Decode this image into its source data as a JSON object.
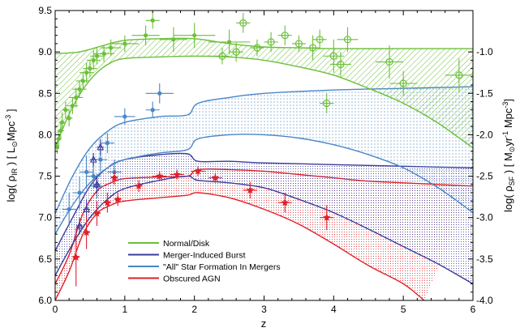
{
  "chart_data": {
    "type": "line",
    "xlabel": "z",
    "ylabel": "log( ρ_IR ) [ L_⊙Mpc^-3 ]",
    "ylabel_right": "log( ρ_SF ) [ M_⊙yr^-1 Mpc^-3 ]",
    "xlim": [
      0,
      6
    ],
    "ylim": [
      6.0,
      9.5
    ],
    "xticks": [
      "0",
      "1",
      "2",
      "3",
      "4",
      "5",
      "6"
    ],
    "yticks": [
      "6.0",
      "6.5",
      "7.0",
      "7.5",
      "8.0",
      "8.5",
      "9.0",
      "9.5"
    ],
    "yticks_right": [
      "-1.0",
      "-1.5",
      "-2.0",
      "-2.5",
      "-3.0",
      "-3.5",
      "-4.0"
    ],
    "yticks_right_values": [
      9.0,
      8.5,
      8.0,
      7.5,
      7.0,
      6.5,
      6.0
    ],
    "colors": {
      "normal": "#6cbf3a",
      "merger_burst": "#3b3b9a",
      "all_mergers": "#4a86c5",
      "agn": "#e0202a"
    },
    "legend": [
      {
        "label": "Normal/Disk",
        "color": "#6cbf3a"
      },
      {
        "label": "Merger-Induced Burst",
        "color": "#3b3b9a"
      },
      {
        "label": "\"All\" Star Formation In Mergers",
        "color": "#4a86c5"
      },
      {
        "label": "Obscured AGN",
        "color": "#e0202a"
      }
    ],
    "legend_position": "bottom-center",
    "series": [
      {
        "name": "Normal/Disk",
        "color": "#6cbf3a",
        "upper": [
          [
            0,
            8.98
          ],
          [
            0.35,
            9.0
          ],
          [
            0.7,
            9.08
          ],
          [
            1.0,
            9.14
          ],
          [
            1.5,
            9.16
          ],
          [
            2.0,
            9.16
          ],
          [
            2.5,
            9.1
          ],
          [
            3.0,
            9.06
          ],
          [
            3.5,
            9.05
          ],
          [
            4.0,
            9.04
          ],
          [
            5.0,
            9.04
          ],
          [
            6.0,
            9.04
          ]
        ],
        "lower": [
          [
            0,
            7.85
          ],
          [
            0.2,
            8.25
          ],
          [
            0.4,
            8.55
          ],
          [
            0.6,
            8.75
          ],
          [
            0.8,
            8.87
          ],
          [
            1.0,
            8.92
          ],
          [
            1.5,
            8.94
          ],
          [
            2.0,
            8.95
          ],
          [
            2.5,
            8.94
          ],
          [
            3.0,
            8.9
          ],
          [
            3.5,
            8.82
          ],
          [
            4.0,
            8.72
          ],
          [
            4.5,
            8.56
          ],
          [
            5.0,
            8.38
          ],
          [
            5.5,
            8.14
          ],
          [
            6.0,
            7.84
          ]
        ]
      },
      {
        "name": "All Star Formation In Mergers",
        "color": "#4a86c5",
        "upper": [
          [
            0,
            7.05
          ],
          [
            0.25,
            7.5
          ],
          [
            0.5,
            7.84
          ],
          [
            0.75,
            8.04
          ],
          [
            1.0,
            8.15
          ],
          [
            1.5,
            8.22
          ],
          [
            1.9,
            8.24
          ],
          [
            2.05,
            8.38
          ],
          [
            2.5,
            8.45
          ],
          [
            3.0,
            8.5
          ],
          [
            4.0,
            8.54
          ],
          [
            5.0,
            8.56
          ],
          [
            6.0,
            8.58
          ]
        ],
        "lower": [
          [
            0,
            6.8
          ],
          [
            0.25,
            7.15
          ],
          [
            0.5,
            7.42
          ],
          [
            0.75,
            7.6
          ],
          [
            1.0,
            7.7
          ],
          [
            1.5,
            7.78
          ],
          [
            1.9,
            7.82
          ],
          [
            2.05,
            7.95
          ],
          [
            2.5,
            8.0
          ],
          [
            3.0,
            8.0
          ],
          [
            3.5,
            7.96
          ],
          [
            4.0,
            7.88
          ],
          [
            4.5,
            7.76
          ],
          [
            5.0,
            7.6
          ],
          [
            5.5,
            7.36
          ],
          [
            6.0,
            7.06
          ]
        ]
      },
      {
        "name": "Merger-Induced Burst",
        "color": "#3b3b9a",
        "upper": [
          [
            0,
            6.6
          ],
          [
            0.25,
            7.0
          ],
          [
            0.5,
            7.38
          ],
          [
            0.75,
            7.6
          ],
          [
            1.0,
            7.7
          ],
          [
            1.5,
            7.76
          ],
          [
            1.9,
            7.77
          ],
          [
            2.05,
            7.68
          ],
          [
            2.5,
            7.68
          ],
          [
            3.0,
            7.66
          ],
          [
            4.0,
            7.64
          ],
          [
            5.0,
            7.62
          ],
          [
            6.0,
            7.6
          ]
        ],
        "lower": [
          [
            0,
            6.3
          ],
          [
            0.25,
            6.68
          ],
          [
            0.5,
            7.0
          ],
          [
            0.75,
            7.22
          ],
          [
            1.0,
            7.35
          ],
          [
            1.5,
            7.45
          ],
          [
            1.9,
            7.5
          ],
          [
            2.05,
            7.45
          ],
          [
            2.5,
            7.42
          ],
          [
            3.0,
            7.36
          ],
          [
            3.5,
            7.22
          ],
          [
            4.0,
            7.06
          ],
          [
            4.5,
            6.86
          ],
          [
            5.0,
            6.65
          ],
          [
            5.5,
            6.44
          ],
          [
            6.0,
            6.2
          ]
        ]
      },
      {
        "name": "Obscured AGN",
        "color": "#e0202a",
        "upper": [
          [
            0,
            6.2
          ],
          [
            0.2,
            6.55
          ],
          [
            0.4,
            7.05
          ],
          [
            0.6,
            7.32
          ],
          [
            0.8,
            7.42
          ],
          [
            1.0,
            7.47
          ],
          [
            1.5,
            7.49
          ],
          [
            1.9,
            7.5
          ],
          [
            2.05,
            7.58
          ],
          [
            2.5,
            7.58
          ],
          [
            3.0,
            7.56
          ],
          [
            3.5,
            7.52
          ],
          [
            4.0,
            7.48
          ],
          [
            4.5,
            7.44
          ],
          [
            5.0,
            7.42
          ],
          [
            6.0,
            7.38
          ]
        ],
        "lower": [
          [
            0,
            6.0
          ],
          [
            0.2,
            6.35
          ],
          [
            0.4,
            6.8
          ],
          [
            0.6,
            7.05
          ],
          [
            0.8,
            7.15
          ],
          [
            1.0,
            7.2
          ],
          [
            1.5,
            7.24
          ],
          [
            1.9,
            7.27
          ],
          [
            2.05,
            7.3
          ],
          [
            2.5,
            7.24
          ],
          [
            3.0,
            7.1
          ],
          [
            3.5,
            6.92
          ],
          [
            4.0,
            6.68
          ],
          [
            4.5,
            6.42
          ],
          [
            5.0,
            6.2
          ],
          [
            5.3,
            6.0
          ]
        ]
      }
    ],
    "points": [
      {
        "set": "normal-filled",
        "color": "#6cbf3a",
        "marker": "circle-filled",
        "data": [
          [
            0.03,
            7.85,
            0,
            0.08
          ],
          [
            0.05,
            7.95,
            0.04,
            0.1
          ],
          [
            0.08,
            8.05,
            0.05,
            0.1
          ],
          [
            0.1,
            8.15,
            0.05,
            0.12
          ],
          [
            0.15,
            8.3,
            0.05,
            0.1
          ],
          [
            0.2,
            8.2,
            0.05,
            0.1
          ],
          [
            0.25,
            8.35,
            0.08,
            0.1
          ],
          [
            0.3,
            8.45,
            0.1,
            0.12
          ],
          [
            0.35,
            8.55,
            0.1,
            0.1
          ],
          [
            0.4,
            8.65,
            0.1,
            0.1
          ],
          [
            0.45,
            8.75,
            0.1,
            0.12
          ],
          [
            0.5,
            8.8,
            0.1,
            0.1
          ],
          [
            0.55,
            8.9,
            0.1,
            0.12
          ],
          [
            0.6,
            8.95,
            0.1,
            0.1
          ],
          [
            0.7,
            8.98,
            0.15,
            0.1
          ],
          [
            0.8,
            9.05,
            0.15,
            0.1
          ],
          [
            1.0,
            9.1,
            0.2,
            0.1
          ],
          [
            1.3,
            9.2,
            0.2,
            0.12
          ],
          [
            1.7,
            9.15,
            0.2,
            0.15
          ],
          [
            2.0,
            9.2,
            0.3,
            0.15
          ],
          [
            2.5,
            9.12,
            0.3,
            0.15
          ],
          [
            1.4,
            9.38,
            0.1,
            0.1
          ]
        ]
      },
      {
        "set": "normal-open",
        "color": "#6cbf3a",
        "marker": "circle-open",
        "data": [
          [
            2.4,
            8.95,
            0.1,
            0.1
          ],
          [
            2.6,
            9.0,
            0.1,
            0.12
          ],
          [
            2.9,
            9.05,
            0.1,
            0.1
          ],
          [
            3.1,
            9.12,
            0.1,
            0.12
          ],
          [
            3.3,
            9.2,
            0.1,
            0.12
          ],
          [
            3.5,
            9.1,
            0.1,
            0.1
          ],
          [
            3.7,
            9.05,
            0.1,
            0.15
          ],
          [
            3.8,
            9.15,
            0.1,
            0.12
          ],
          [
            4.0,
            8.95,
            0.15,
            0.2
          ],
          [
            4.1,
            8.85,
            0.15,
            0.15
          ],
          [
            4.2,
            9.15,
            0.15,
            0.15
          ],
          [
            4.8,
            8.88,
            0.2,
            0.2
          ],
          [
            5.0,
            8.62,
            0.2,
            0.15
          ],
          [
            5.8,
            8.72,
            0.2,
            0.2
          ],
          [
            2.7,
            9.35,
            0.1,
            0.12
          ],
          [
            3.9,
            8.38,
            0.1,
            0.12
          ]
        ]
      },
      {
        "set": "all-mergers",
        "color": "#4a86c5",
        "marker": "circle-filled",
        "data": [
          [
            0.2,
            7.1,
            0.1,
            0.2
          ],
          [
            0.35,
            7.3,
            0.1,
            0.2
          ],
          [
            0.45,
            7.55,
            0.1,
            0.2
          ],
          [
            0.55,
            7.5,
            0.1,
            0.15
          ],
          [
            0.65,
            7.7,
            0.1,
            0.15
          ],
          [
            0.75,
            7.9,
            0.1,
            0.12
          ],
          [
            0.85,
            7.55,
            0.1,
            0.15
          ],
          [
            1.0,
            8.22,
            0.15,
            0.1
          ],
          [
            1.5,
            8.5,
            0.2,
            0.12
          ],
          [
            0.6,
            7.38,
            0.1,
            0.15
          ],
          [
            1.4,
            8.3,
            0.1,
            0.1
          ]
        ]
      },
      {
        "set": "merger-burst",
        "color": "#3b3b9a",
        "marker": "triangle",
        "data": [
          [
            0.55,
            7.7,
            0.05,
            0.08
          ],
          [
            0.65,
            7.85,
            0.05,
            0.1
          ],
          [
            0.35,
            6.9,
            0.05,
            0.1
          ],
          [
            0.45,
            7.1,
            0.05,
            0.12
          ],
          [
            0.6,
            7.4,
            0.05,
            0.1
          ]
        ]
      },
      {
        "set": "agn",
        "color": "#e0202a",
        "marker": "star",
        "data": [
          [
            0.3,
            6.52,
            0.05,
            0.35
          ],
          [
            0.45,
            6.82,
            0.05,
            0.2
          ],
          [
            0.6,
            7.05,
            0.05,
            0.15
          ],
          [
            0.75,
            7.18,
            0.05,
            0.12
          ],
          [
            0.9,
            7.22,
            0.05,
            0.08
          ],
          [
            1.2,
            7.38,
            0.05,
            0.07
          ],
          [
            1.5,
            7.5,
            0.1,
            0.06
          ],
          [
            1.75,
            7.52,
            0.1,
            0.06
          ],
          [
            2.05,
            7.56,
            0.1,
            0.06
          ],
          [
            2.3,
            7.48,
            0.1,
            0.06
          ],
          [
            2.8,
            7.33,
            0.1,
            0.1
          ],
          [
            3.3,
            7.18,
            0.1,
            0.12
          ],
          [
            3.9,
            7.0,
            0.1,
            0.15
          ],
          [
            0.85,
            7.48,
            0.05,
            0.08
          ]
        ]
      }
    ]
  }
}
